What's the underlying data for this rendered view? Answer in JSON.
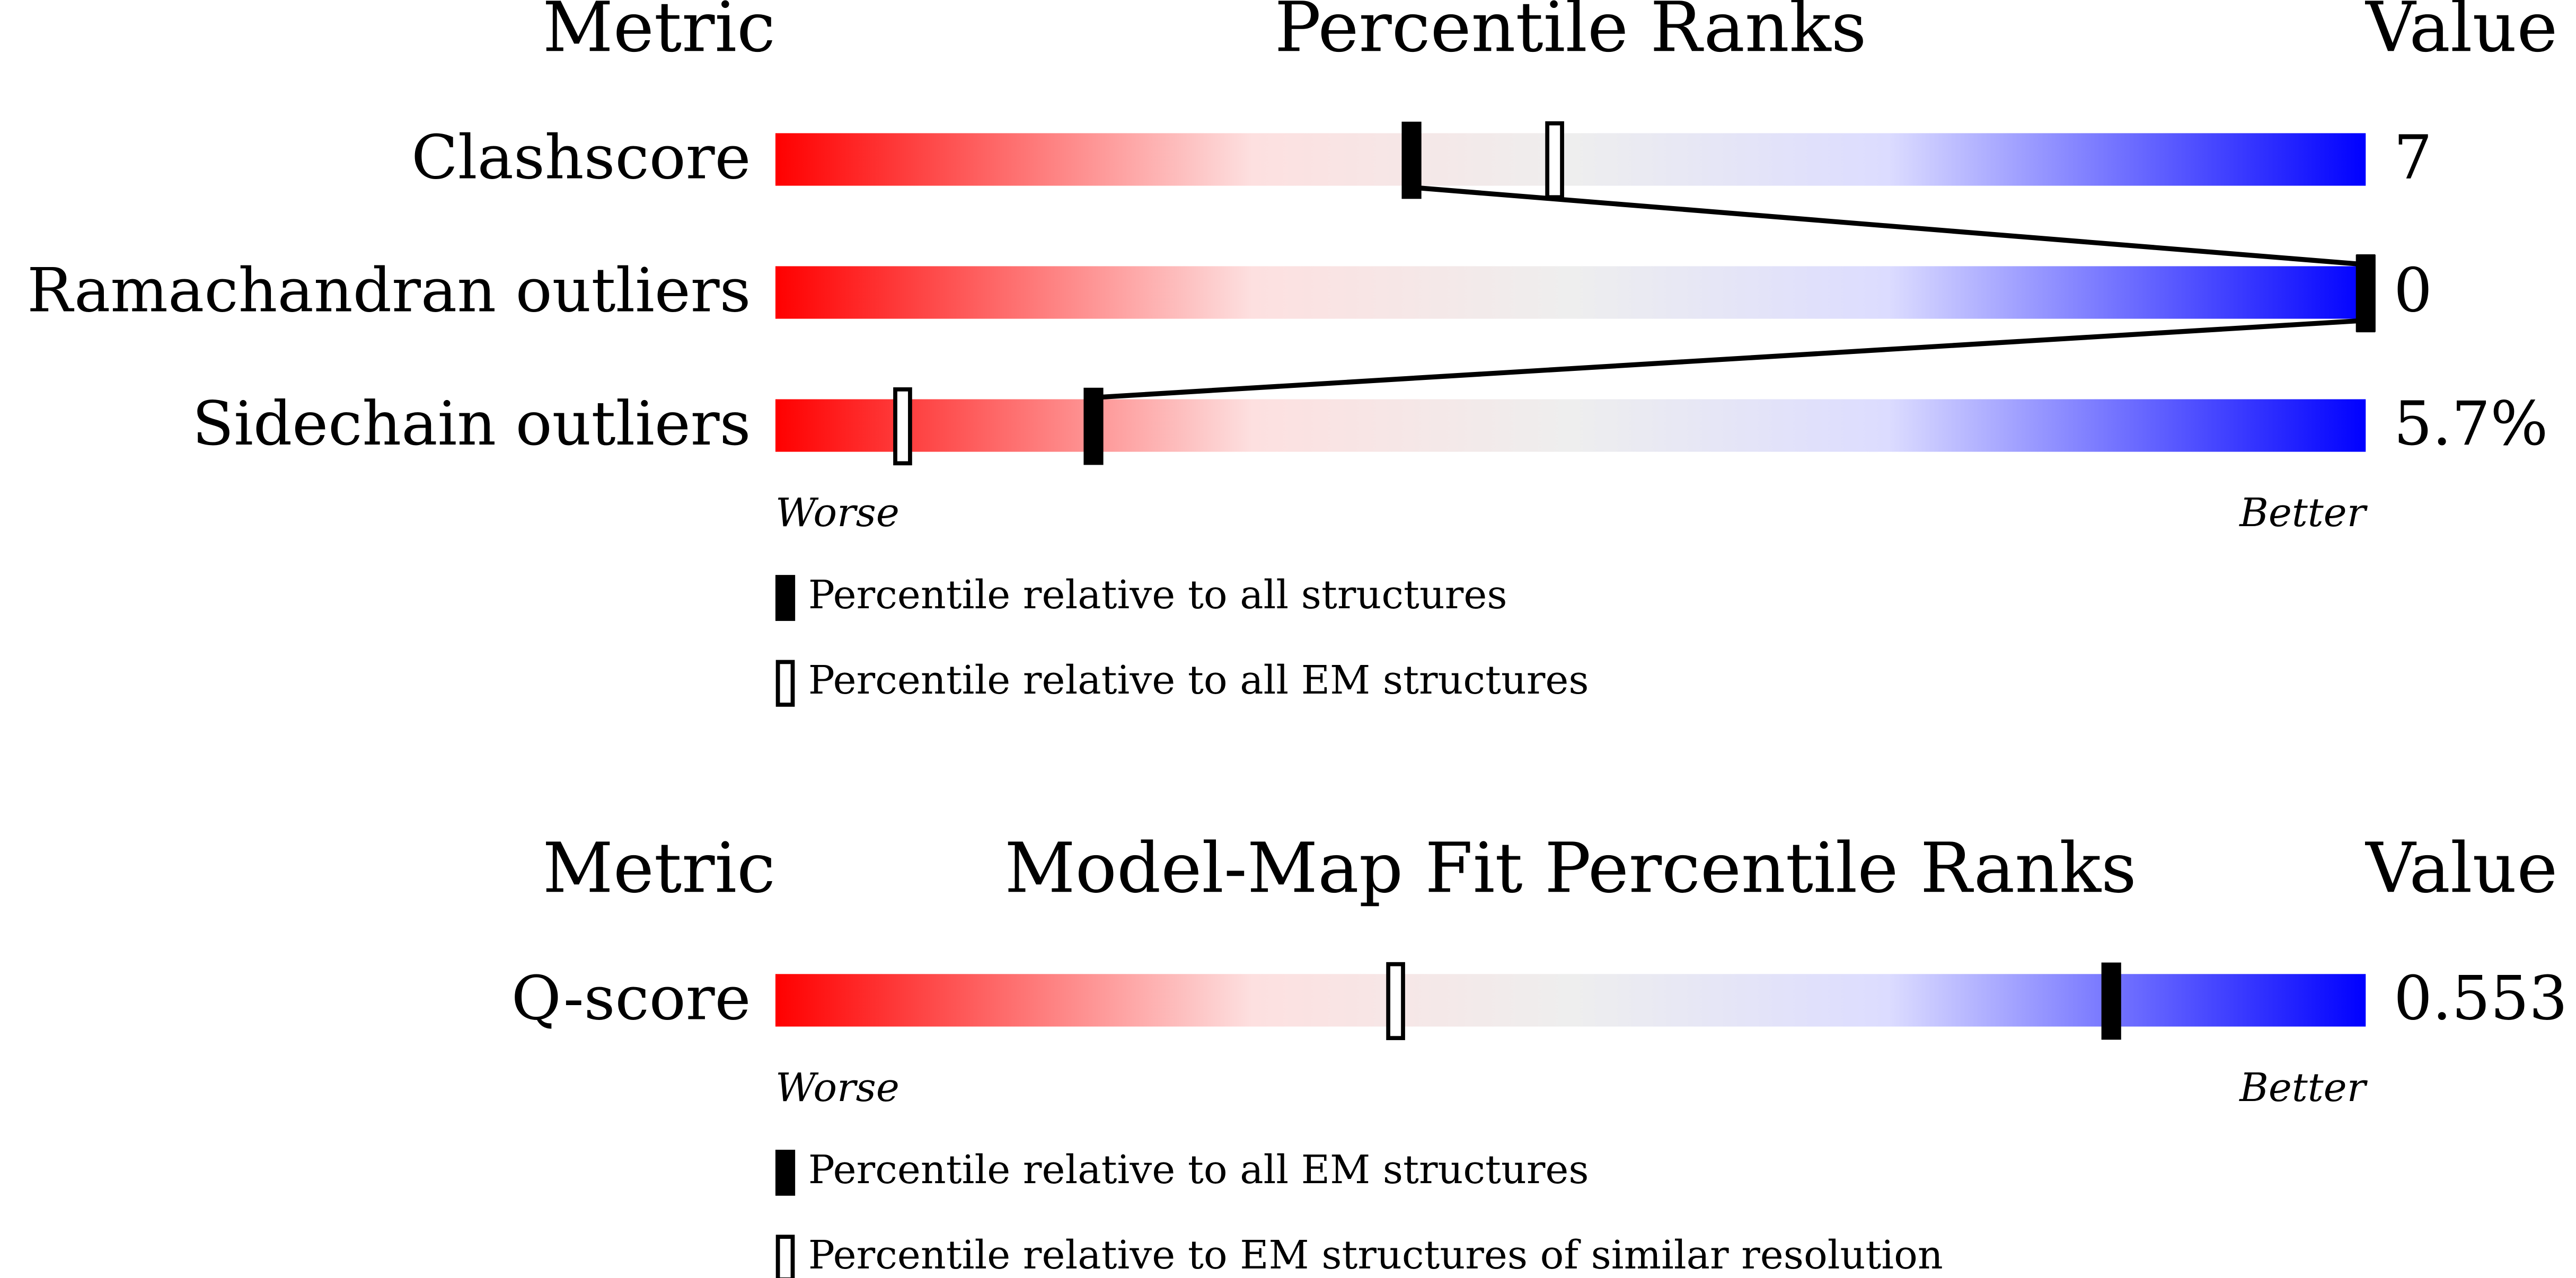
{
  "panels": [
    {
      "headers": {
        "metric": "Metric",
        "title": "Percentile Ranks",
        "value": "Value"
      },
      "xlim": [
        0,
        100
      ],
      "metrics": [
        {
          "name": "Clashscore",
          "value": "7",
          "percentile_all": 40,
          "percentile_em": 49
        },
        {
          "name": "Ramachandran outliers",
          "value": "0",
          "percentile_all": 100,
          "percentile_em": 100
        },
        {
          "name": "Sidechain outliers",
          "value": "5.7%",
          "percentile_all": 20,
          "percentile_em": 8
        }
      ],
      "scale_labels": {
        "worse": "Worse",
        "better": "Better"
      },
      "legend": {
        "filled": "Percentile relative to all structures",
        "open": "Percentile relative to all EM structures"
      }
    },
    {
      "headers": {
        "metric": "Metric",
        "title": "Model-Map Fit Percentile Ranks",
        "value": "Value"
      },
      "xlim": [
        0,
        100
      ],
      "metrics": [
        {
          "name": "Q-score",
          "value": "0.553",
          "percentile_all": 84,
          "percentile_em": 39
        }
      ],
      "scale_labels": {
        "worse": "Worse",
        "better": "Better"
      },
      "legend": {
        "filled": "Percentile relative to all EM structures",
        "open": "Percentile relative to EM structures of similar resolution"
      }
    }
  ]
}
